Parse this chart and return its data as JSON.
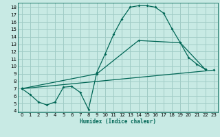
{
  "title": "",
  "xlabel": "Humidex (Indice chaleur)",
  "ylabel": "",
  "bg_color": "#c8eae4",
  "grid_color": "#a0ccc6",
  "line_color": "#006655",
  "xlim": [
    -0.5,
    23.5
  ],
  "ylim": [
    3.8,
    18.6
  ],
  "xticks": [
    0,
    1,
    2,
    3,
    4,
    5,
    6,
    7,
    8,
    9,
    10,
    11,
    12,
    13,
    14,
    15,
    16,
    17,
    18,
    19,
    20,
    21,
    22,
    23
  ],
  "yticks": [
    4,
    5,
    6,
    7,
    8,
    9,
    10,
    11,
    12,
    13,
    14,
    15,
    16,
    17,
    18
  ],
  "line1_x": [
    0,
    1,
    2,
    3,
    4,
    5,
    6,
    7,
    8,
    9,
    10,
    11,
    12,
    13,
    14,
    15,
    16,
    17,
    18,
    19,
    20,
    21,
    22
  ],
  "line1_y": [
    7.0,
    6.2,
    5.2,
    4.8,
    5.2,
    7.2,
    7.3,
    6.5,
    4.2,
    9.2,
    11.7,
    14.3,
    16.4,
    18.0,
    18.2,
    18.2,
    18.0,
    17.2,
    15.1,
    13.2,
    11.2,
    10.3,
    9.6
  ],
  "line2_x": [
    0,
    23
  ],
  "line2_y": [
    7.0,
    9.5
  ],
  "line3_x": [
    0,
    9,
    14,
    19,
    22
  ],
  "line3_y": [
    7.0,
    9.0,
    13.5,
    13.2,
    9.6
  ]
}
